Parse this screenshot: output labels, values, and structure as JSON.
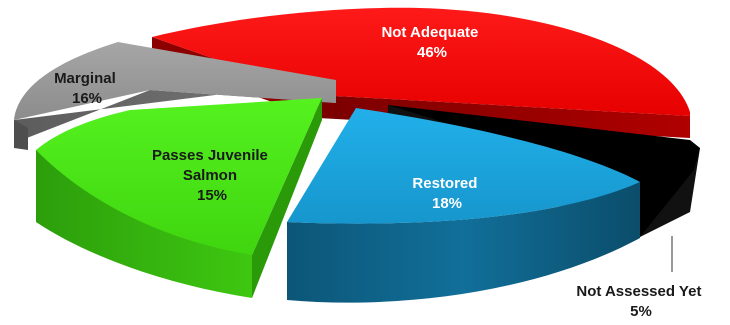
{
  "chart_data": {
    "type": "pie",
    "style": "3d-exploded",
    "slices": [
      {
        "label": "Not Adequate",
        "pct_label": "46%",
        "value": 46,
        "color": "#ff0000",
        "text_color": "#ffffff"
      },
      {
        "label": "Not Assessed Yet",
        "pct_label": "5%",
        "value": 5,
        "color": "#000000",
        "text_color": "#1a1a1a"
      },
      {
        "label": "Restored",
        "pct_label": "18%",
        "value": 18,
        "color": "#1aa3dc",
        "text_color": "#ffffff"
      },
      {
        "label": "Passes Juvenile Salmon",
        "label_lines": [
          "Passes Juvenile",
          "Salmon"
        ],
        "pct_label": "15%",
        "value": 15,
        "color": "#44e613",
        "text_color": "#1a1a1a"
      },
      {
        "label": "Marginal",
        "pct_label": "16%",
        "value": 16,
        "color": "#969696",
        "text_color": "#1a1a1a"
      }
    ]
  }
}
